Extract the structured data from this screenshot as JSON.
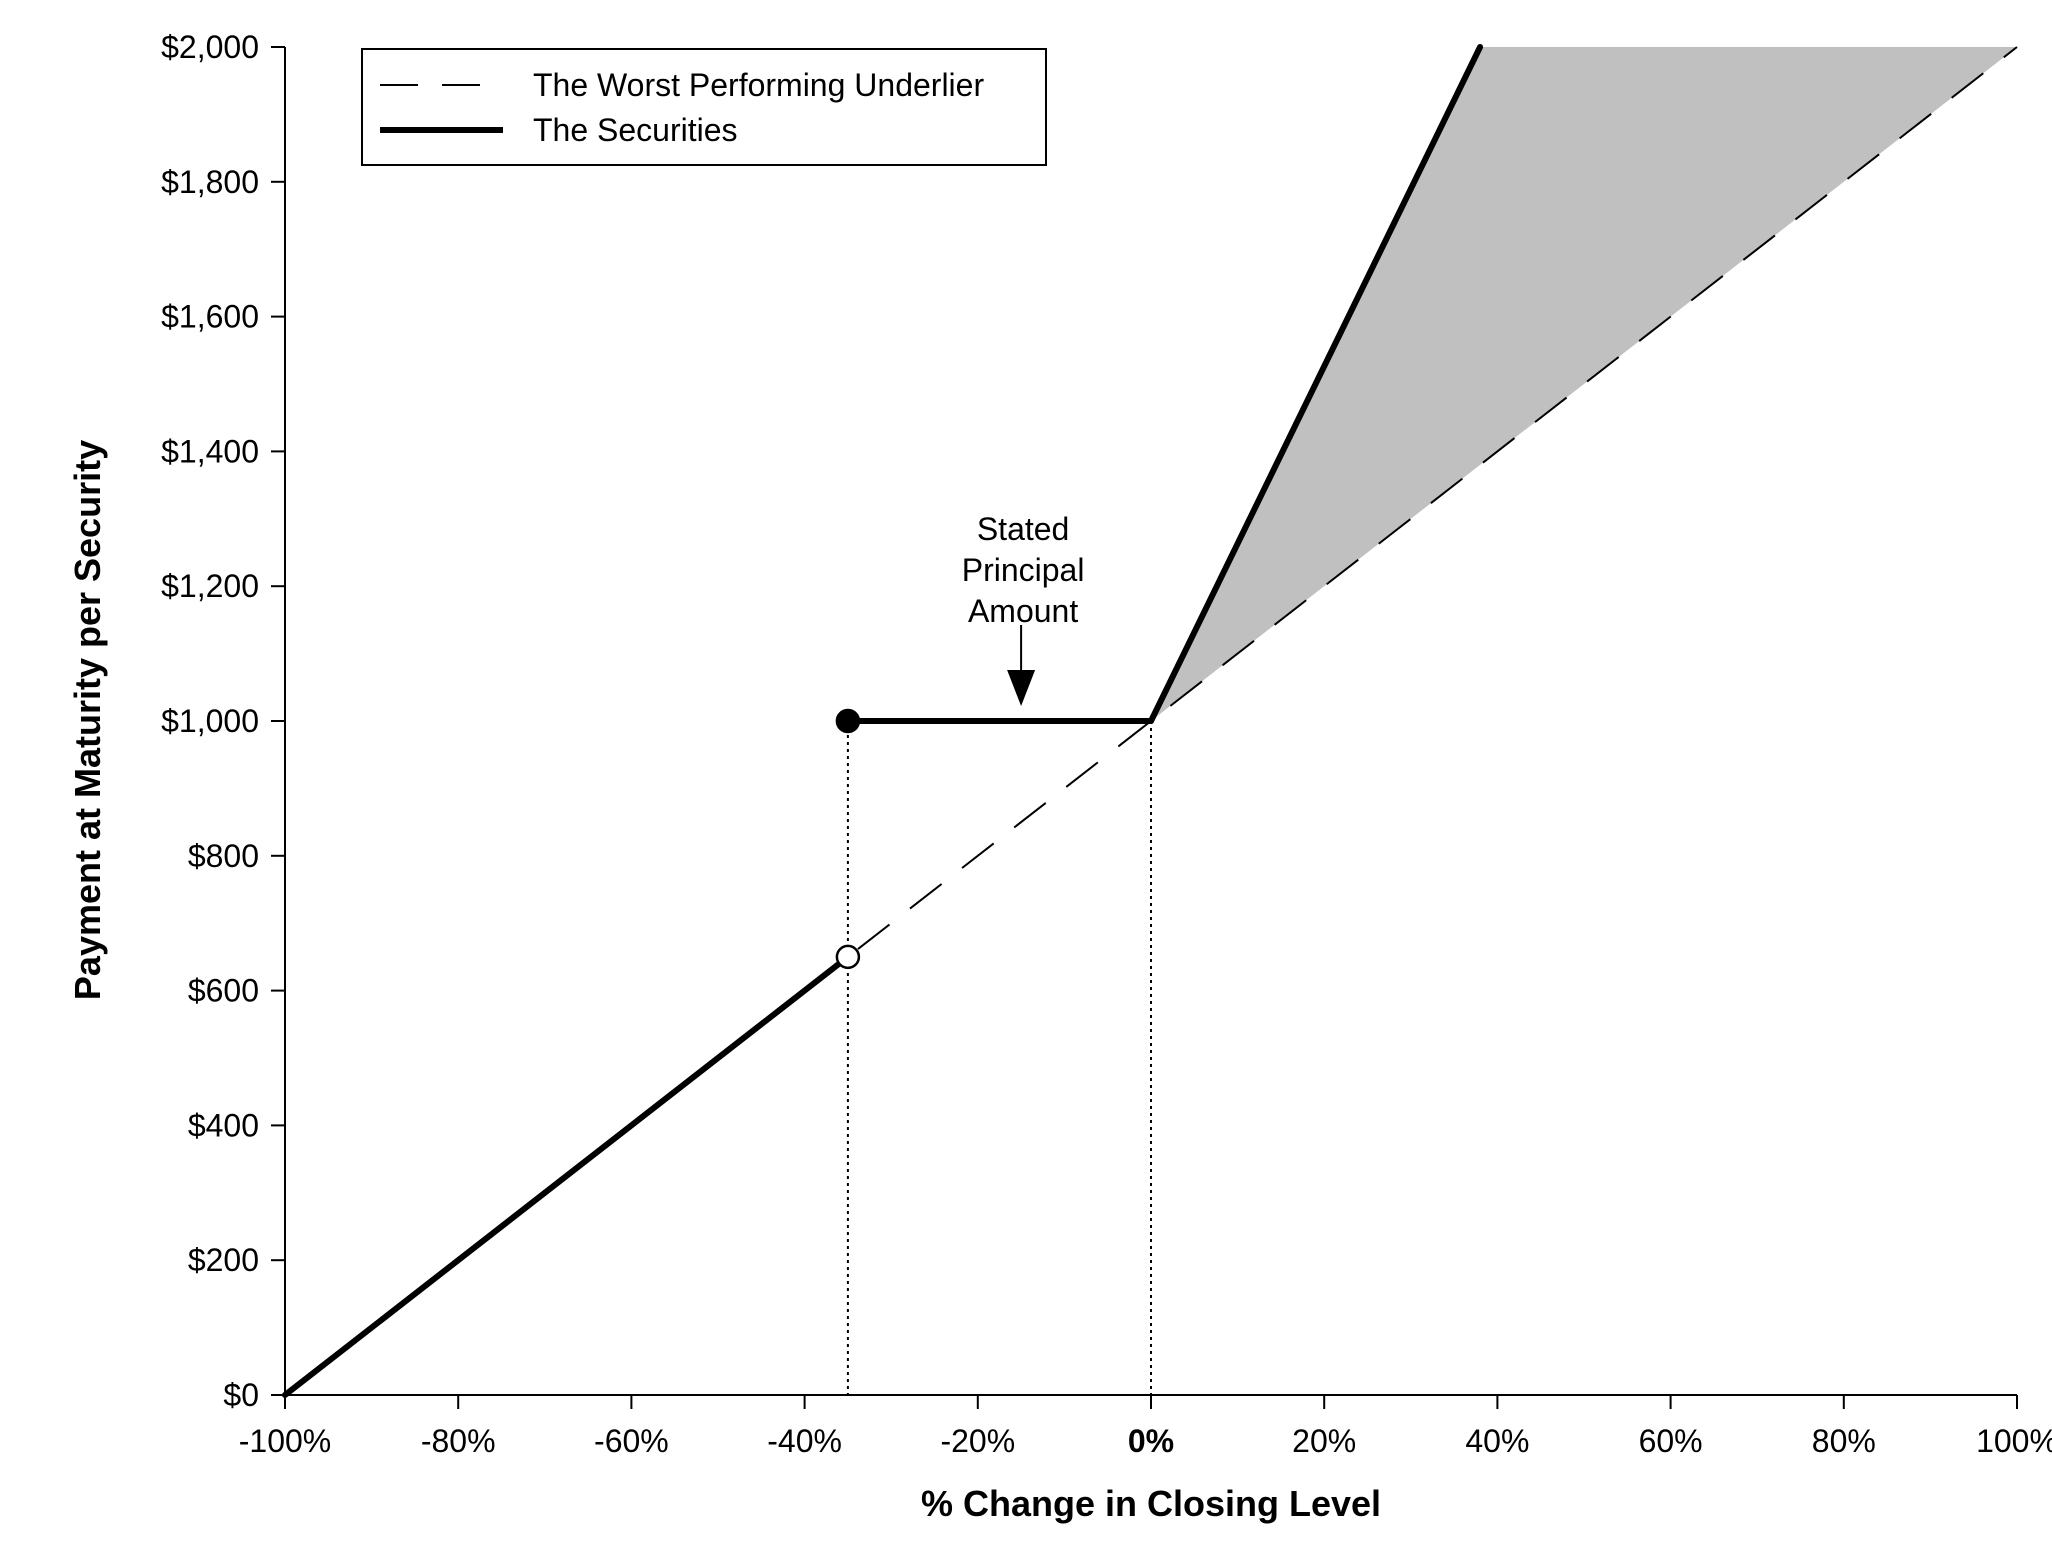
{
  "chart_data": {
    "type": "line",
    "xlabel": "% Change in Closing Level",
    "ylabel": "Payment at Maturity per Security",
    "xlim": [
      -100,
      100
    ],
    "ylim": [
      0,
      2000
    ],
    "x_ticks": [
      {
        "value": -100,
        "label": "-100%"
      },
      {
        "value": -80,
        "label": "-80%"
      },
      {
        "value": -60,
        "label": "-60%"
      },
      {
        "value": -40,
        "label": "-40%"
      },
      {
        "value": -20,
        "label": "-20%"
      },
      {
        "value": 0,
        "label": "0%"
      },
      {
        "value": 20,
        "label": "20%"
      },
      {
        "value": 40,
        "label": "40%"
      },
      {
        "value": 60,
        "label": "60%"
      },
      {
        "value": 80,
        "label": "80%"
      },
      {
        "value": 100,
        "label": "100%"
      }
    ],
    "y_ticks": [
      {
        "value": 0,
        "label": "$0"
      },
      {
        "value": 200,
        "label": "$200"
      },
      {
        "value": 400,
        "label": "$400"
      },
      {
        "value": 600,
        "label": "$600"
      },
      {
        "value": 800,
        "label": "$800"
      },
      {
        "value": 1000,
        "label": "$1,000"
      },
      {
        "value": 1200,
        "label": "$1,200"
      },
      {
        "value": 1400,
        "label": "$1,400"
      },
      {
        "value": 1600,
        "label": "$1,600"
      },
      {
        "value": 1800,
        "label": "$1,800"
      },
      {
        "value": 2000,
        "label": "$2,000"
      }
    ],
    "series": [
      {
        "name": "The Worst Performing Underlier",
        "style": "dashed",
        "points": [
          [
            -100,
            0
          ],
          [
            100,
            2000
          ]
        ]
      },
      {
        "name": "The Securities",
        "style": "solid-thick",
        "segments": [
          [
            [
              -100,
              0
            ],
            [
              -35,
              650
            ]
          ],
          [
            [
              -35,
              1000
            ],
            [
              0,
              1000
            ]
          ],
          [
            [
              0,
              1000
            ],
            [
              38,
              2000
            ]
          ]
        ]
      }
    ],
    "shaded_region": {
      "color": "#c0c0c0",
      "points": [
        [
          0,
          1000
        ],
        [
          38,
          2000
        ],
        [
          100,
          2000
        ]
      ]
    },
    "markers": [
      {
        "x": -35,
        "y": 1000,
        "style": "filled"
      },
      {
        "x": -35,
        "y": 650,
        "style": "open"
      }
    ],
    "reference_lines": [
      {
        "x": -35,
        "style": "dotted"
      },
      {
        "x": 0,
        "style": "dotted"
      }
    ],
    "annotations": [
      {
        "lines": [
          "Stated",
          "Principal",
          "Amount"
        ],
        "arrow_to": {
          "x": -15,
          "y": 1000
        }
      }
    ],
    "legend": {
      "position": "top-left"
    },
    "grid": false,
    "colors": {
      "line": "#000000",
      "shade": "#c0c0c0"
    }
  }
}
